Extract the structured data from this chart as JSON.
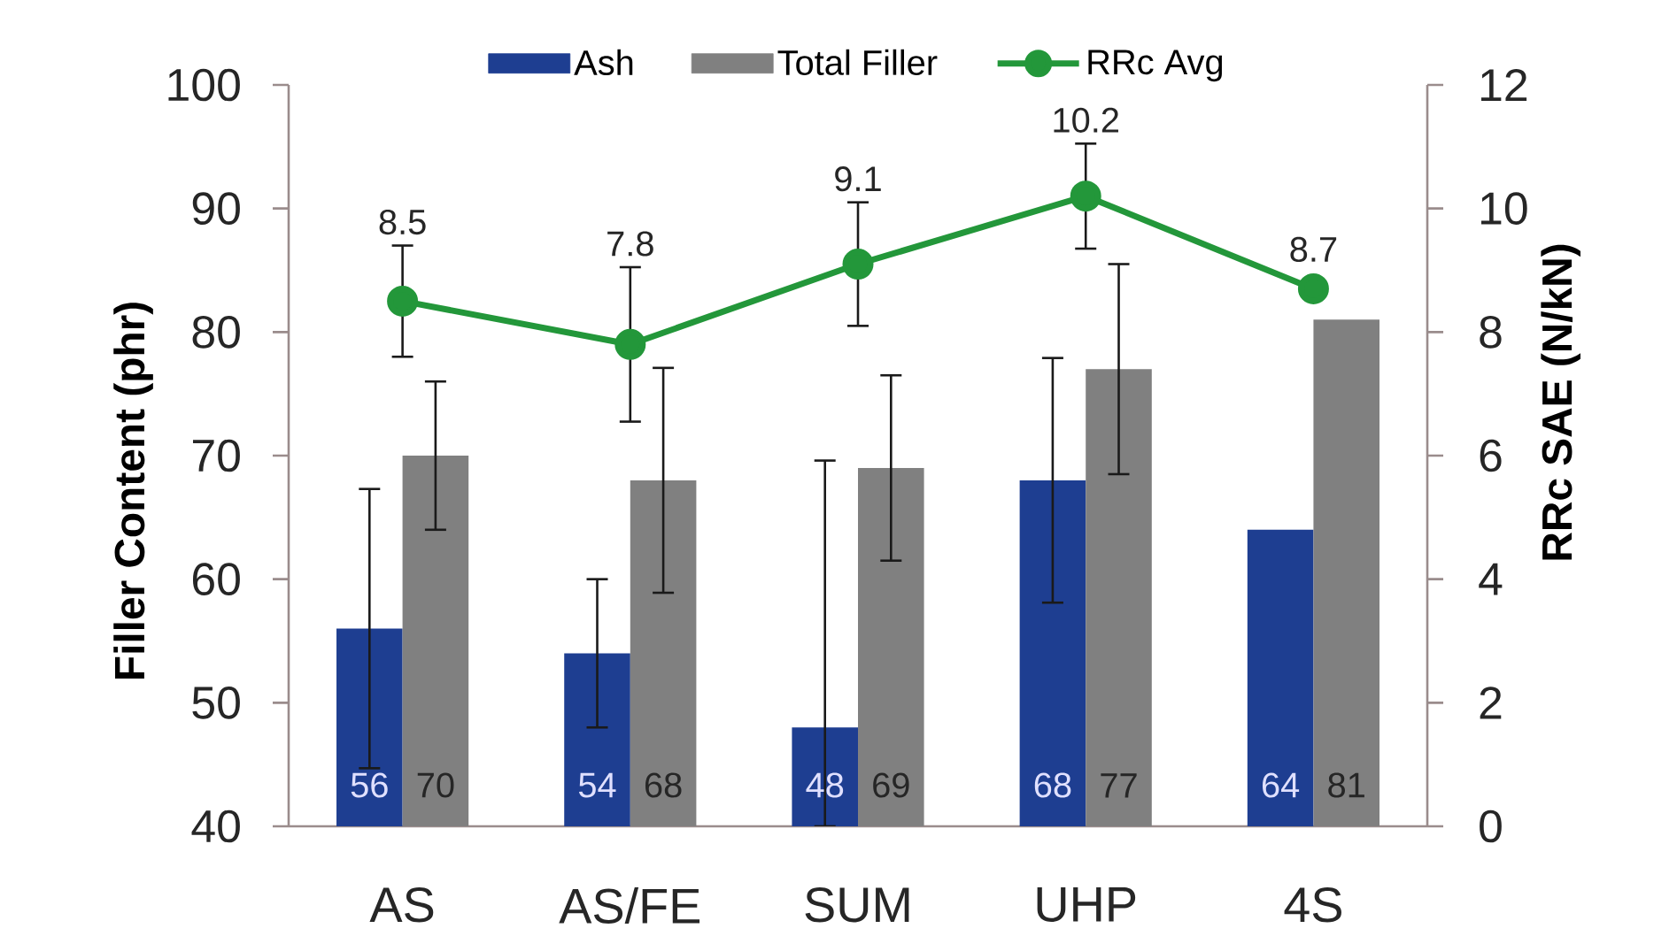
{
  "chart_data": {
    "type": "bar",
    "categories": [
      "AS",
      "AS/FE",
      "SUM",
      "UHP",
      "4S"
    ],
    "ylabel": "Filler Content (phr)",
    "y2label": "RRc SAE (N/kN)",
    "ylim": [
      40,
      100
    ],
    "yticks": [
      40,
      50,
      60,
      70,
      80,
      90,
      100
    ],
    "y2lim": [
      0,
      12
    ],
    "y2ticks": [
      0,
      2,
      4,
      6,
      8,
      10,
      12
    ],
    "series": [
      {
        "name": "Ash",
        "color": "#1e3e91",
        "values": [
          56,
          54,
          48,
          68,
          64
        ],
        "errors": [
          11.3,
          6,
          [
            40,
            69.6
          ],
          9.9,
          null
        ]
      },
      {
        "name": "Total Filler",
        "color": "#808080",
        "values": [
          70,
          68,
          69,
          77,
          81
        ],
        "errors": [
          6,
          9.1,
          7.5,
          8.5,
          null
        ]
      },
      {
        "name": "RRc Avg",
        "type": "line",
        "axis": "y2",
        "color": "#23973a",
        "marker": "circle",
        "values": [
          8.5,
          7.8,
          9.1,
          10.2,
          8.7
        ],
        "errors": [
          0.9,
          1.25,
          1.0,
          0.85,
          null
        ]
      }
    ],
    "data_labels": true,
    "legend": "top"
  }
}
